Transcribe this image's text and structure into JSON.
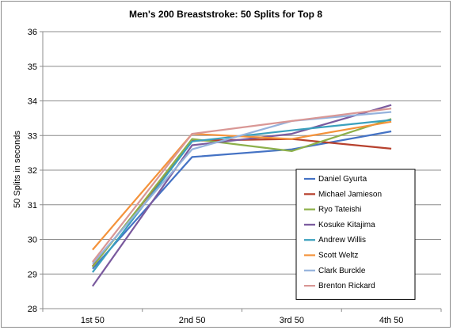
{
  "chart_data": {
    "type": "line",
    "title": "Men's 200 Breaststroke: 50 Splits for Top 8",
    "xlabel": "",
    "ylabel": "50 Splits in seconds",
    "categories": [
      "1st 50",
      "2nd 50",
      "3rd 50",
      "4th 50"
    ],
    "ylim": [
      28,
      36
    ],
    "yticks": [
      28,
      29,
      30,
      31,
      32,
      33,
      34,
      35,
      36
    ],
    "grid": "horizontal",
    "legend_position": "inside-bottom-right",
    "series": [
      {
        "name": "Daniel Gyurta",
        "color": "#4472c4",
        "values": [
          29.15,
          32.38,
          32.6,
          33.12
        ]
      },
      {
        "name": "Michael Jamieson",
        "color": "#b7412e",
        "values": [
          29.22,
          32.85,
          32.9,
          32.62
        ]
      },
      {
        "name": "Ryo Tateishi",
        "color": "#8db04a",
        "values": [
          29.2,
          32.9,
          32.55,
          33.48
        ]
      },
      {
        "name": "Kosuke Kitajima",
        "color": "#7a5a9e",
        "values": [
          28.65,
          32.72,
          33.05,
          33.88
        ]
      },
      {
        "name": "Andrew Willis",
        "color": "#3aa0bd",
        "values": [
          29.05,
          32.83,
          33.15,
          33.45
        ]
      },
      {
        "name": "Scott Weltz",
        "color": "#f4923a",
        "values": [
          29.7,
          33.05,
          32.9,
          33.4
        ]
      },
      {
        "name": "Clark Burckle",
        "color": "#95b2dc",
        "values": [
          29.3,
          32.6,
          33.42,
          33.68
        ]
      },
      {
        "name": "Brenton Rickard",
        "color": "#d99795",
        "values": [
          29.35,
          33.05,
          33.42,
          33.78
        ]
      }
    ]
  }
}
